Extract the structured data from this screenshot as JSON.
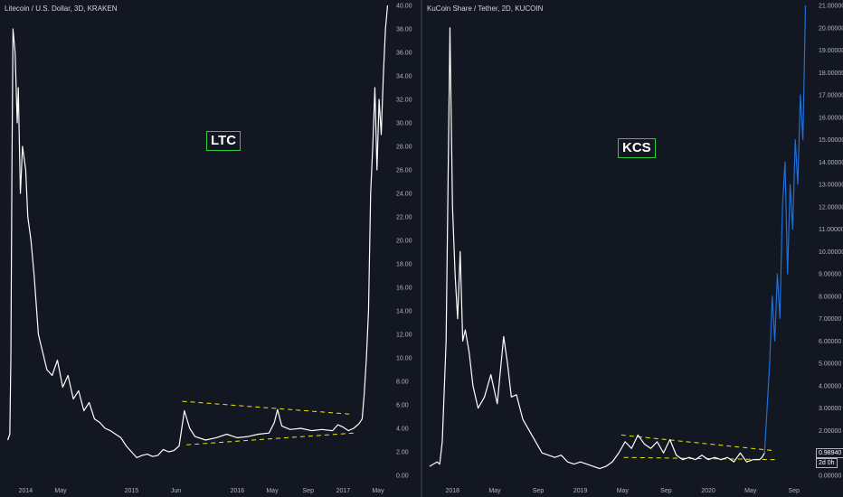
{
  "colors": {
    "background": "#131722",
    "line": "#ffffff",
    "line_forecast": "#1e6fd9",
    "trend": "#f2e600",
    "badge_border": "#2ecc40",
    "axis_text": "#b2b5be"
  },
  "chart_data": [
    {
      "type": "line",
      "title": "Litecoin / U.S. Dollar, 3D, KRAKEN",
      "annotation": "LTC",
      "ylim": [
        0,
        40
      ],
      "y_ticks": [
        "0.00",
        "2.00",
        "4.00",
        "6.00",
        "8.00",
        "10.00",
        "12.00",
        "14.00",
        "16.00",
        "18.00",
        "20.00",
        "22.00",
        "24.00",
        "26.00",
        "28.00",
        "30.00",
        "32.00",
        "34.00",
        "36.00",
        "38.00",
        "40.00"
      ],
      "x_tick_labels": [
        "2014",
        "May",
        "2015",
        "Jun",
        "2016",
        "May",
        "Sep",
        "2017",
        "May"
      ],
      "x_tick_positions": [
        2014.0,
        2014.33,
        2015.0,
        2015.42,
        2016.0,
        2016.33,
        2016.67,
        2017.0,
        2017.33
      ],
      "xlim": [
        2013.8,
        2017.45
      ],
      "x": [
        2013.83,
        2013.85,
        2013.86,
        2013.87,
        2013.88,
        2013.9,
        2013.92,
        2013.93,
        2013.95,
        2013.97,
        2014.0,
        2014.02,
        2014.05,
        2014.08,
        2014.12,
        2014.16,
        2014.2,
        2014.25,
        2014.3,
        2014.35,
        2014.4,
        2014.45,
        2014.5,
        2014.55,
        2014.6,
        2014.65,
        2014.7,
        2014.75,
        2014.8,
        2014.85,
        2014.9,
        2014.95,
        2015.0,
        2015.05,
        2015.1,
        2015.15,
        2015.2,
        2015.25,
        2015.3,
        2015.35,
        2015.4,
        2015.45,
        2015.5,
        2015.55,
        2015.6,
        2015.7,
        2015.8,
        2015.9,
        2016.0,
        2016.1,
        2016.2,
        2016.3,
        2016.35,
        2016.38,
        2016.42,
        2016.5,
        2016.6,
        2016.7,
        2016.8,
        2016.9,
        2016.95,
        2017.0,
        2017.05,
        2017.1,
        2017.15,
        2017.18,
        2017.2,
        2017.22,
        2017.24,
        2017.26,
        2017.28,
        2017.3,
        2017.32,
        2017.34,
        2017.36,
        2017.38,
        2017.4,
        2017.42
      ],
      "values": [
        3.0,
        3.5,
        10,
        26,
        38,
        36,
        30,
        33,
        24,
        28,
        26,
        22,
        20,
        17,
        12,
        10.5,
        9,
        8.5,
        9.8,
        7.5,
        8.5,
        6.5,
        7.2,
        5.5,
        6.2,
        4.8,
        4.5,
        4.0,
        3.8,
        3.5,
        3.2,
        2.5,
        2.0,
        1.5,
        1.7,
        1.8,
        1.6,
        1.7,
        2.2,
        2.0,
        2.1,
        2.5,
        5.5,
        4.0,
        3.3,
        3.0,
        3.2,
        3.5,
        3.2,
        3.3,
        3.5,
        3.6,
        4.5,
        5.6,
        4.2,
        3.9,
        4.0,
        3.8,
        3.9,
        3.8,
        4.3,
        4.1,
        3.8,
        4.0,
        4.4,
        4.8,
        7.0,
        10.0,
        14,
        24,
        28,
        33,
        26,
        32,
        29,
        34,
        38,
        40
      ],
      "trendlines": [
        {
          "from": [
            2015.48,
            6.3
          ],
          "to": [
            2017.08,
            5.2
          ]
        },
        {
          "from": [
            2015.52,
            2.6
          ],
          "to": [
            2017.1,
            3.6
          ]
        }
      ]
    },
    {
      "type": "line",
      "title": "KuCoin Share / Tether, 2D, KUCOIN",
      "annotation": "KCS",
      "ylim": [
        0,
        21
      ],
      "y_ticks": [
        "0.00000",
        "1.00000",
        "2.00000",
        "3.00000",
        "4.00000",
        "5.00000",
        "6.00000",
        "7.00000",
        "8.00000",
        "9.00000",
        "10.00000",
        "11.00000",
        "12.00000",
        "13.00000",
        "14.00000",
        "15.00000",
        "16.00000",
        "17.00000",
        "18.00000",
        "19.00000",
        "20.00000",
        "21.00000"
      ],
      "x_tick_labels": [
        "2018",
        "May",
        "Sep",
        "2019",
        "May",
        "Sep",
        "2020",
        "May",
        "Sep"
      ],
      "x_tick_positions": [
        2018.0,
        2018.33,
        2018.67,
        2019.0,
        2019.33,
        2019.67,
        2020.0,
        2020.33,
        2020.67
      ],
      "xlim": [
        2017.8,
        2020.82
      ],
      "x": [
        2017.82,
        2017.85,
        2017.88,
        2017.9,
        2017.92,
        2017.95,
        2017.98,
        2018.0,
        2018.02,
        2018.04,
        2018.06,
        2018.08,
        2018.1,
        2018.13,
        2018.16,
        2018.2,
        2018.25,
        2018.3,
        2018.35,
        2018.4,
        2018.43,
        2018.46,
        2018.5,
        2018.55,
        2018.6,
        2018.65,
        2018.7,
        2018.75,
        2018.8,
        2018.85,
        2018.9,
        2018.95,
        2019.0,
        2019.05,
        2019.1,
        2019.15,
        2019.2,
        2019.25,
        2019.3,
        2019.35,
        2019.4,
        2019.45,
        2019.5,
        2019.55,
        2019.6,
        2019.65,
        2019.7,
        2019.75,
        2019.8,
        2019.85,
        2019.9,
        2019.95,
        2020.0,
        2020.05,
        2020.1,
        2020.15,
        2020.2,
        2020.25,
        2020.3,
        2020.35,
        2020.4,
        2020.42,
        2020.44,
        2020.46,
        2020.48,
        2020.5,
        2020.52,
        2020.54,
        2020.56,
        2020.58,
        2020.6,
        2020.62,
        2020.64,
        2020.66,
        2020.68,
        2020.7,
        2020.72,
        2020.74,
        2020.76
      ],
      "values": [
        0.4,
        0.5,
        0.6,
        0.5,
        1.5,
        6,
        20,
        12,
        9,
        7,
        10,
        6,
        6.5,
        5.5,
        4.0,
        3.0,
        3.5,
        4.5,
        3.2,
        6.2,
        5.0,
        3.5,
        3.6,
        2.5,
        2.0,
        1.5,
        1.0,
        0.9,
        0.8,
        0.9,
        0.6,
        0.5,
        0.6,
        0.5,
        0.4,
        0.3,
        0.4,
        0.6,
        1.0,
        1.5,
        1.2,
        1.8,
        1.4,
        1.2,
        1.5,
        1.0,
        1.6,
        0.9,
        0.7,
        0.8,
        0.7,
        0.9,
        0.7,
        0.8,
        0.7,
        0.8,
        0.6,
        1.0,
        0.6,
        0.7,
        0.7,
        0.8,
        1.0,
        3,
        5,
        8,
        6,
        9,
        7,
        12,
        14,
        9,
        13,
        11,
        15,
        13,
        17,
        15,
        21
      ],
      "forecast_from_index": 62,
      "last_price_label": "0.98940",
      "countdown_label": "2d 0h",
      "last_price_value": 0.9894,
      "trendlines": [
        {
          "from": [
            2019.32,
            1.8
          ],
          "to": [
            2020.52,
            1.1
          ]
        },
        {
          "from": [
            2019.34,
            0.8
          ],
          "to": [
            2020.52,
            0.7
          ]
        }
      ]
    }
  ]
}
